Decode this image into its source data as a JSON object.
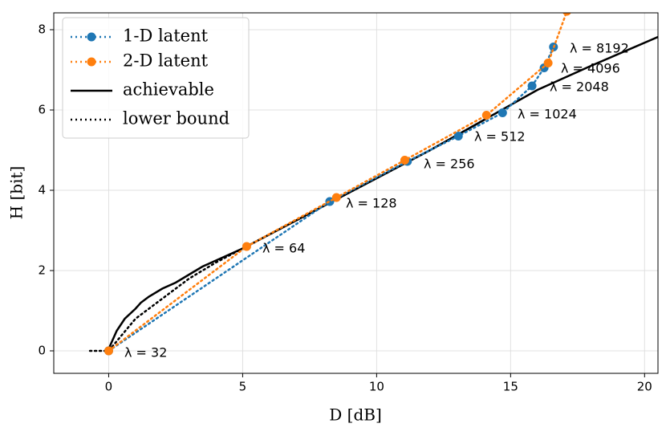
{
  "chart_data": {
    "type": "line",
    "xlabel": "D [dB]",
    "ylabel": "H [bit]",
    "xlim": [
      -2.05,
      20.5
    ],
    "ylim": [
      -0.56,
      8.42
    ],
    "xticks": [
      0,
      5,
      10,
      15,
      20
    ],
    "yticks": [
      0,
      2,
      4,
      6,
      8
    ],
    "grid": true,
    "legend": "upper left",
    "series": [
      {
        "name": "1-D latent",
        "color": "#1f77b4",
        "style": "dotted",
        "marker": true,
        "x": [
          0,
          8.25,
          11.15,
          13.05,
          14.7,
          15.8,
          16.25,
          16.6
        ],
        "values": [
          0,
          3.72,
          4.72,
          5.35,
          5.93,
          6.6,
          7.05,
          7.57
        ]
      },
      {
        "name": "2-D latent",
        "color": "#ff7f0e",
        "style": "dotted",
        "marker": true,
        "x": [
          0,
          5.15,
          8.5,
          11.05,
          14.1,
          16.4,
          17.1
        ],
        "values": [
          0,
          2.6,
          3.82,
          4.75,
          5.87,
          7.17,
          8.46
        ]
      },
      {
        "name": "achievable",
        "color": "#000000",
        "style": "solid",
        "marker": false,
        "x": [
          0,
          0.3,
          0.6,
          1,
          1.2,
          1.5,
          2,
          2.5,
          3,
          3.5,
          4,
          5,
          6,
          8,
          10,
          12,
          14,
          16,
          18,
          20.5
        ],
        "values": [
          0.05,
          0.5,
          0.8,
          1.05,
          1.2,
          1.35,
          1.55,
          1.7,
          1.9,
          2.1,
          2.25,
          2.55,
          2.9,
          3.6,
          4.3,
          5.0,
          5.75,
          6.5,
          7.1,
          7.82
        ]
      },
      {
        "name": "lower bound",
        "color": "#000000",
        "style": "dotted",
        "marker": false,
        "x": [
          -0.7,
          0,
          0.5,
          1,
          2,
          3,
          4,
          5,
          6,
          8,
          10,
          12,
          14
        ],
        "values": [
          0,
          0,
          0.4,
          0.8,
          1.3,
          1.8,
          2.2,
          2.55,
          2.9,
          3.6,
          4.3,
          5.0,
          5.75
        ]
      }
    ],
    "annotations": [
      "λ = 32",
      "λ = 64",
      "λ = 128",
      "λ = 256",
      "λ = 512",
      "λ = 1024",
      "λ = 2048",
      "λ = 4096",
      "λ = 8192"
    ]
  }
}
